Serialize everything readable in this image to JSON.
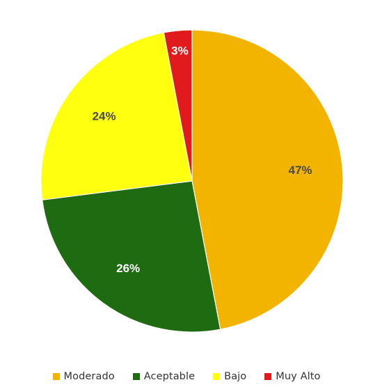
{
  "chart_data": {
    "type": "pie",
    "title": "",
    "start_angle_deg": -90,
    "slices": [
      {
        "label": "Moderado",
        "value": 47,
        "display": "47%",
        "color": "#f2b400",
        "label_color": "#4a4a4a"
      },
      {
        "label": "Aceptable",
        "value": 26,
        "display": "26%",
        "color": "#1e6b12",
        "label_color": "#ffffff"
      },
      {
        "label": "Bajo",
        "value": 24,
        "display": "24%",
        "color": "#ffff10",
        "label_color": "#4a4a4a"
      },
      {
        "label": "Muy Alto",
        "value": 3,
        "display": "3%",
        "color": "#e11b1b",
        "label_color": "#ffffff"
      }
    ],
    "legend": {
      "position": "bottom",
      "items": [
        {
          "label": "Moderado",
          "color": "#f2b400"
        },
        {
          "label": "Aceptable",
          "color": "#1e6b12"
        },
        {
          "label": "Bajo",
          "color": "#ffff10"
        },
        {
          "label": "Muy Alto",
          "color": "#e11b1b"
        }
      ]
    }
  }
}
